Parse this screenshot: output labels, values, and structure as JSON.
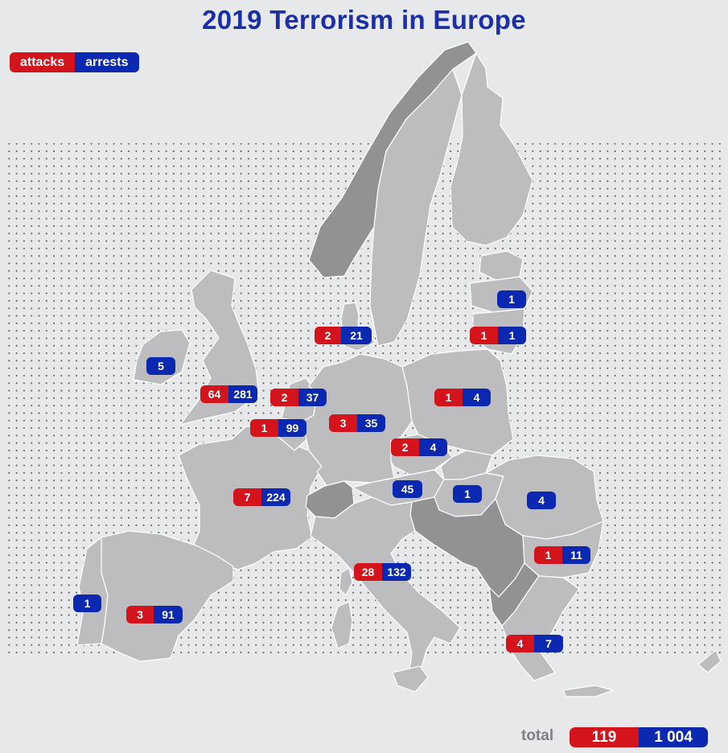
{
  "title": "2019 Terrorism in Europe",
  "legend": {
    "attacks": "attacks",
    "arrests": "arrests"
  },
  "colors": {
    "attacks": "#d4141c",
    "arrests": "#0b28b0",
    "land": "#bdbdbf",
    "land_dark": "#929294",
    "background": "#e7e8ea",
    "title": "#1a2fa8"
  },
  "countries": [
    {
      "id": "latvia",
      "arrests": "1"
    },
    {
      "id": "lithuania",
      "attacks": "1",
      "arrests": "1"
    },
    {
      "id": "denmark",
      "attacks": "2",
      "arrests": "21"
    },
    {
      "id": "ireland",
      "arrests": "5"
    },
    {
      "id": "united-kingdom",
      "attacks": "64",
      "arrests": "281"
    },
    {
      "id": "netherlands",
      "attacks": "2",
      "arrests": "37"
    },
    {
      "id": "belgium",
      "attacks": "1",
      "arrests": "99"
    },
    {
      "id": "germany",
      "attacks": "3",
      "arrests": "35"
    },
    {
      "id": "poland",
      "attacks": "1",
      "arrests": "4"
    },
    {
      "id": "czechia",
      "attacks": "2",
      "arrests": "4"
    },
    {
      "id": "austria",
      "arrests": "45"
    },
    {
      "id": "hungary",
      "arrests": "1"
    },
    {
      "id": "romania",
      "arrests": "4"
    },
    {
      "id": "france",
      "attacks": "7",
      "arrests": "224"
    },
    {
      "id": "bulgaria",
      "attacks": "1",
      "arrests": "11"
    },
    {
      "id": "italy",
      "attacks": "28",
      "arrests": "132"
    },
    {
      "id": "portugal",
      "arrests": "1"
    },
    {
      "id": "spain",
      "attacks": "3",
      "arrests": "91"
    },
    {
      "id": "greece",
      "attacks": "4",
      "arrests": "7"
    }
  ],
  "total": {
    "label": "total",
    "attacks": "119",
    "arrests": "1 004"
  }
}
